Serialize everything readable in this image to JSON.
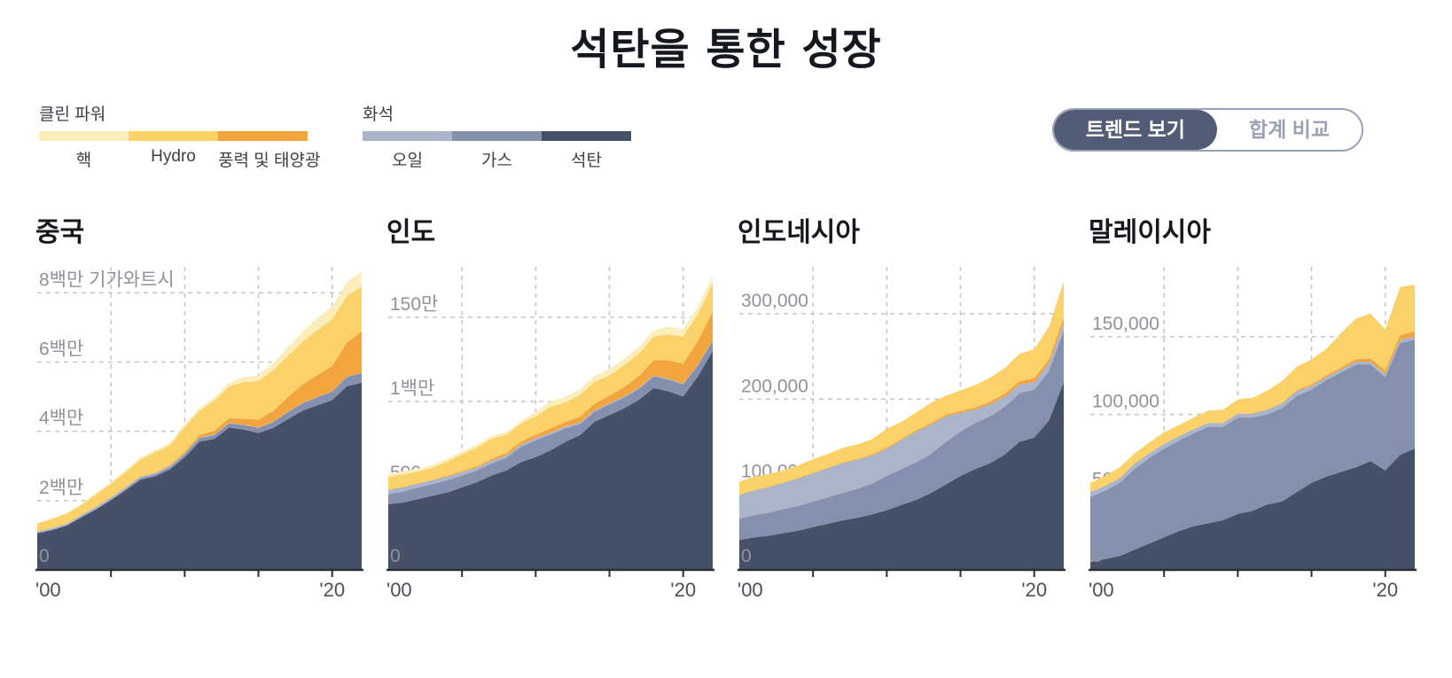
{
  "title": "석탄을 통한 성장",
  "legend": {
    "clean_label": "클린 파워",
    "fossil_label": "화석",
    "clean_items": [
      {
        "label": "핵",
        "color": "#fbeebb"
      },
      {
        "label": "Hydro",
        "color": "#fbd269"
      },
      {
        "label": "풍력 및 태양광",
        "color": "#f2a53c"
      }
    ],
    "fossil_items": [
      {
        "label": "오일",
        "color": "#acb4ca"
      },
      {
        "label": "가스",
        "color": "#8490ae"
      },
      {
        "label": "석탄",
        "color": "#475069"
      }
    ]
  },
  "toggle": {
    "trend_label": "트렌드 보기",
    "total_label": "합계 비교"
  },
  "chart_data": [
    {
      "type": "area",
      "stacked": true,
      "title": "중국",
      "unit": "기가와트시",
      "x_range": [
        2000,
        2022
      ],
      "x_grid": [
        2005,
        2010,
        2015,
        2020
      ],
      "x_tick_labels": [
        {
          "year": 2000,
          "label": "'00"
        },
        {
          "year": 2020,
          "label": "'20"
        }
      ],
      "ylim": [
        0,
        8750000
      ],
      "y_ticks": [
        {
          "v": 0,
          "label": "0"
        },
        {
          "v": 2000000,
          "label": "2백만"
        },
        {
          "v": 4000000,
          "label": "4백만"
        },
        {
          "v": 6000000,
          "label": "6백만"
        },
        {
          "v": 8000000,
          "label": "8백만 기가와트시"
        }
      ],
      "series": [
        {
          "name": "석탄",
          "color": "#475069",
          "values": [
            1060000,
            1150000,
            1280000,
            1520000,
            1750000,
            2010000,
            2300000,
            2600000,
            2700000,
            2900000,
            3250000,
            3700000,
            3780000,
            4110000,
            4050000,
            3950000,
            4100000,
            4350000,
            4600000,
            4750000,
            4900000,
            5300000,
            5400000
          ]
        },
        {
          "name": "가스",
          "color": "#8490ae",
          "values": [
            6000,
            8000,
            10000,
            12000,
            15000,
            21000,
            33000,
            47000,
            57000,
            67000,
            83000,
            103000,
            110000,
            116000,
            133000,
            145000,
            170000,
            203000,
            215000,
            232000,
            246000,
            272000,
            280000
          ]
        },
        {
          "name": "오일",
          "color": "#acb4ca",
          "values": [
            47000,
            48000,
            47000,
            54000,
            60000,
            59000,
            54000,
            50000,
            40000,
            33000,
            28000,
            22000,
            16000,
            13000,
            11000,
            10000,
            10000,
            10000,
            10000,
            10000,
            10000,
            10000,
            10000
          ]
        },
        {
          "name": "풍력 및 태양광",
          "color": "#f2a53c",
          "values": [
            600,
            700,
            900,
            1300,
            1700,
            2100,
            3100,
            6000,
            13000,
            27000,
            49000,
            74000,
            100000,
            138000,
            167000,
            231000,
            307000,
            424000,
            536000,
            630000,
            730000,
            984000,
            1190000
          ]
        },
        {
          "name": "Hydro",
          "color": "#fbd269",
          "values": [
            222000,
            261000,
            288000,
            284000,
            353000,
            397000,
            436000,
            485000,
            585000,
            571000,
            722000,
            699000,
            872000,
            912000,
            1064000,
            1113000,
            1181000,
            1190000,
            1232000,
            1304000,
            1355000,
            1340000,
            1303000
          ]
        },
        {
          "name": "핵",
          "color": "#fbeebb",
          "values": [
            17000,
            17000,
            25000,
            43000,
            50000,
            53000,
            55000,
            62000,
            68000,
            70000,
            74000,
            87000,
            98000,
            111000,
            133000,
            171000,
            213000,
            248000,
            295000,
            349000,
            366000,
            408000,
            418000
          ]
        }
      ]
    },
    {
      "type": "area",
      "stacked": true,
      "title": "인도",
      "unit": "기가와트시",
      "x_range": [
        2000,
        2022
      ],
      "x_grid": [
        2005,
        2010,
        2015,
        2020
      ],
      "x_tick_labels": [
        {
          "year": 2000,
          "label": "'00"
        },
        {
          "year": 2020,
          "label": "'20"
        }
      ],
      "ylim": [
        0,
        1800000
      ],
      "y_ticks": [
        {
          "v": 0,
          "label": "0"
        },
        {
          "v": 500000,
          "label": "500,000"
        },
        {
          "v": 1000000,
          "label": "1백만"
        },
        {
          "v": 1500000,
          "label": "150만"
        }
      ],
      "series": [
        {
          "name": "석탄",
          "color": "#475069",
          "values": [
            390000,
            400000,
            420000,
            440000,
            460000,
            490000,
            520000,
            560000,
            590000,
            640000,
            670000,
            710000,
            760000,
            800000,
            880000,
            920000,
            960000,
            1010000,
            1080000,
            1060000,
            1030000,
            1150000,
            1300000
          ]
        },
        {
          "name": "가스",
          "color": "#8490ae",
          "values": [
            60000,
            65000,
            68000,
            70000,
            72000,
            70000,
            70000,
            72000,
            75000,
            90000,
            100000,
            93000,
            80000,
            66000,
            60000,
            62000,
            64000,
            65000,
            70000,
            70000,
            72000,
            66000,
            60000
          ]
        },
        {
          "name": "오일",
          "color": "#acb4ca",
          "values": [
            25000,
            25000,
            24000,
            23000,
            22000,
            20000,
            18000,
            16000,
            15000,
            14000,
            13000,
            12000,
            11000,
            10000,
            9000,
            8000,
            7000,
            6000,
            5000,
            4000,
            4000,
            3000,
            3000
          ]
        },
        {
          "name": "풍력 및 태양광",
          "color": "#f2a53c",
          "values": [
            1700,
            2000,
            2500,
            3000,
            4000,
            5500,
            8000,
            11000,
            14000,
            18000,
            20000,
            24000,
            28000,
            33000,
            38000,
            45000,
            55000,
            70000,
            90000,
            110000,
            120000,
            140000,
            170000
          ]
        },
        {
          "name": "Hydro",
          "color": "#fbd269",
          "values": [
            74000,
            74000,
            68000,
            70000,
            85000,
            100000,
            110000,
            120000,
            110000,
            105000,
            110000,
            130000,
            115000,
            130000,
            130000,
            120000,
            130000,
            135000,
            140000,
            155000,
            160000,
            160000,
            170000
          ]
        },
        {
          "name": "핵",
          "color": "#fbeebb",
          "values": [
            17000,
            19000,
            19000,
            18000,
            17000,
            17000,
            19000,
            17000,
            15000,
            19000,
            26000,
            32000,
            33000,
            35000,
            36000,
            37000,
            38000,
            38000,
            39000,
            45000,
            43000,
            44000,
            46000
          ]
        }
      ]
    },
    {
      "type": "area",
      "stacked": true,
      "title": "인도네시아",
      "unit": "기가와트시",
      "x_range": [
        2000,
        2022
      ],
      "x_grid": [
        2005,
        2010,
        2015,
        2020
      ],
      "x_tick_labels": [
        {
          "year": 2000,
          "label": "'00"
        },
        {
          "year": 2020,
          "label": "'20"
        }
      ],
      "ylim": [
        0,
        355000
      ],
      "y_ticks": [
        {
          "v": 0,
          "label": "0"
        },
        {
          "v": 100000,
          "label": "100,000"
        },
        {
          "v": 200000,
          "label": "200,000"
        },
        {
          "v": 300000,
          "label": "300,000"
        }
      ],
      "series": [
        {
          "name": "석탄",
          "color": "#475069",
          "values": [
            35000,
            38000,
            40000,
            43000,
            46000,
            50000,
            54000,
            58000,
            61000,
            65000,
            70000,
            76000,
            82000,
            90000,
            100000,
            110000,
            118000,
            125000,
            135000,
            150000,
            155000,
            175000,
            220000
          ]
        },
        {
          "name": "가스",
          "color": "#8490ae",
          "values": [
            25000,
            26000,
            27000,
            28000,
            29000,
            30000,
            31000,
            32000,
            34000,
            36000,
            40000,
            42000,
            44000,
            46000,
            50000,
            52000,
            54000,
            55000,
            56000,
            57000,
            56000,
            58000,
            60000
          ]
        },
        {
          "name": "오일",
          "color": "#acb4ca",
          "values": [
            28000,
            29000,
            30000,
            31000,
            32000,
            33000,
            34000,
            35000,
            34000,
            33000,
            32000,
            34000,
            36000,
            34000,
            30000,
            22000,
            16000,
            14000,
            12000,
            10000,
            9000,
            9000,
            10000
          ]
        },
        {
          "name": "풍력 및 태양광",
          "color": "#f2a53c",
          "values": [
            300,
            350,
            400,
            450,
            500,
            600,
            700,
            800,
            900,
            1000,
            1200,
            1400,
            1600,
            1800,
            2000,
            2200,
            2500,
            3000,
            3500,
            4000,
            4500,
            5000,
            6000
          ]
        },
        {
          "name": "Hydro",
          "color": "#fbd269",
          "values": [
            15000,
            16000,
            15000,
            14000,
            15000,
            16000,
            16000,
            17000,
            17000,
            18000,
            22000,
            20000,
            21000,
            24000,
            22000,
            24000,
            26000,
            28000,
            30000,
            32000,
            34000,
            38000,
            42000
          ]
        },
        {
          "name": "핵",
          "color": "#fbeebb",
          "values": [
            0,
            0,
            0,
            0,
            0,
            0,
            0,
            0,
            0,
            0,
            0,
            0,
            0,
            0,
            0,
            0,
            0,
            0,
            0,
            0,
            0,
            0,
            0
          ]
        }
      ]
    },
    {
      "type": "area",
      "stacked": true,
      "title": "말레이시아",
      "unit": "기가와트시",
      "x_range": [
        2000,
        2022
      ],
      "x_grid": [
        2005,
        2010,
        2015,
        2020
      ],
      "x_tick_labels": [
        {
          "year": 2000,
          "label": "'00"
        },
        {
          "year": 2020,
          "label": "'20"
        }
      ],
      "ylim": [
        0,
        195000
      ],
      "y_ticks": [
        {
          "v": 0,
          "label": "0"
        },
        {
          "v": 50000,
          "label": "50,000"
        },
        {
          "v": 100000,
          "label": "100,000"
        },
        {
          "v": 150000,
          "label": "150,000"
        }
      ],
      "series": [
        {
          "name": "석탄",
          "color": "#475069",
          "values": [
            5000,
            7000,
            9000,
            13000,
            17000,
            21000,
            25000,
            28000,
            30000,
            32000,
            36000,
            38000,
            42000,
            44000,
            50000,
            56000,
            60000,
            63000,
            66000,
            70000,
            64000,
            74000,
            78000
          ]
        },
        {
          "name": "가스",
          "color": "#8490ae",
          "values": [
            42000,
            44000,
            47000,
            52000,
            55000,
            57000,
            58000,
            60000,
            62000,
            60000,
            62000,
            60000,
            58000,
            60000,
            62000,
            60000,
            62000,
            64000,
            66000,
            62000,
            60000,
            72000,
            70000
          ]
        },
        {
          "name": "오일",
          "color": "#acb4ca",
          "values": [
            3000,
            3000,
            3000,
            3500,
            3000,
            3000,
            3000,
            2500,
            2500,
            2500,
            2500,
            2500,
            3000,
            3000,
            3000,
            2500,
            2000,
            2000,
            2000,
            2000,
            2000,
            2000,
            2000
          ]
        },
        {
          "name": "풍력 및 태양광",
          "color": "#f2a53c",
          "values": [
            0,
            0,
            0,
            0,
            0,
            0,
            0,
            0,
            0,
            100,
            200,
            300,
            400,
            500,
            700,
            900,
            1100,
            1300,
            1600,
            2000,
            2500,
            3000,
            3500
          ]
        },
        {
          "name": "Hydro",
          "color": "#fbd269",
          "values": [
            6000,
            6500,
            7000,
            6500,
            7000,
            7500,
            7000,
            7500,
            8000,
            8500,
            9000,
            10000,
            12000,
            14000,
            15000,
            16000,
            17000,
            22000,
            26000,
            29000,
            26000,
            31000,
            30000
          ]
        },
        {
          "name": "핵",
          "color": "#fbeebb",
          "values": [
            0,
            0,
            0,
            0,
            0,
            0,
            0,
            0,
            0,
            0,
            0,
            0,
            0,
            0,
            0,
            0,
            0,
            0,
            0,
            0,
            0,
            0,
            0
          ]
        }
      ]
    }
  ]
}
